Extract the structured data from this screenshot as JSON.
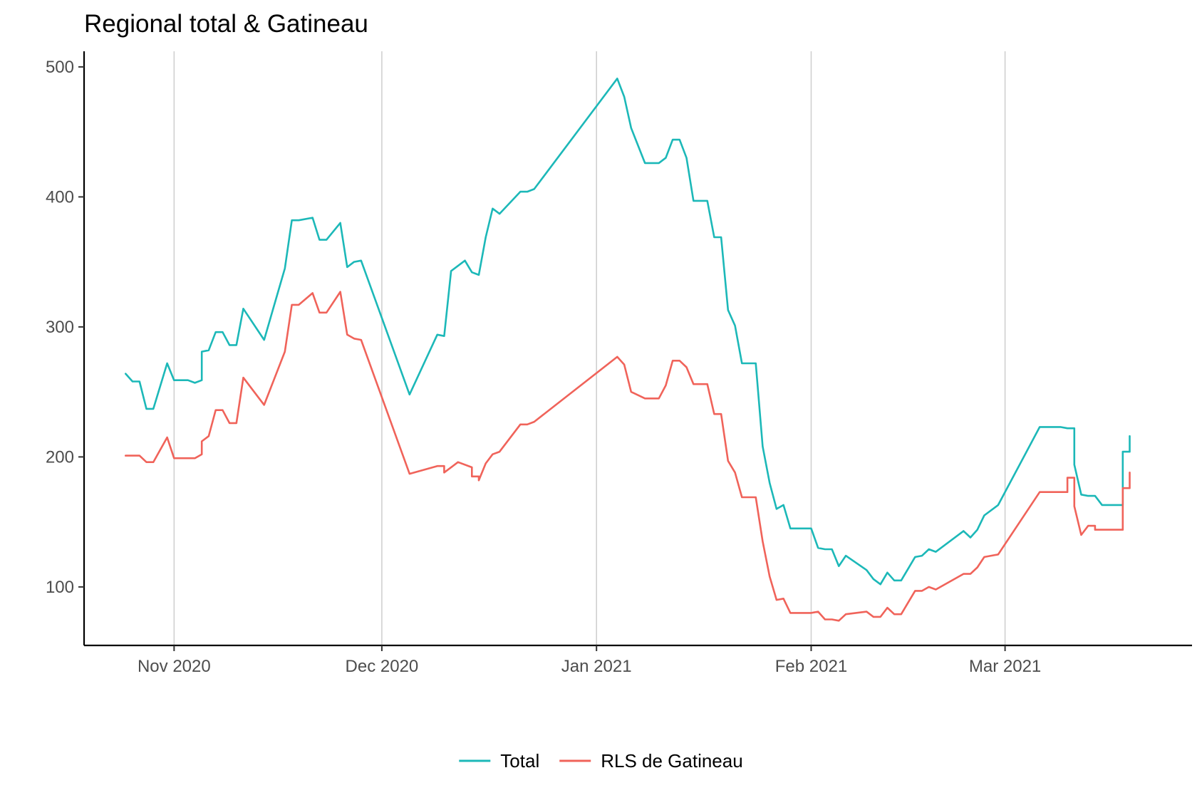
{
  "chart_data": {
    "type": "line",
    "title": "Regional total & Gatineau",
    "xlabel": "",
    "ylabel": "",
    "x_axis": {
      "type": "date",
      "range": [
        "2020-10-19",
        "2021-03-28"
      ],
      "ticks": [
        {
          "date": "2020-11-01",
          "label": "Nov 2020"
        },
        {
          "date": "2020-12-01",
          "label": "Dec 2020"
        },
        {
          "date": "2021-01-01",
          "label": "Jan 2021"
        },
        {
          "date": "2021-02-01",
          "label": "Feb 2021"
        },
        {
          "date": "2021-03-01",
          "label": "Mar 2021"
        }
      ],
      "grid": true
    },
    "y_axis": {
      "range": [
        55,
        512
      ],
      "ticks": [
        100,
        200,
        300,
        400,
        500
      ],
      "grid": false
    },
    "legend": {
      "position": "bottom"
    },
    "series": [
      {
        "name": "Total",
        "color": "#1cb8b8",
        "points": [
          [
            "2020-10-25",
            264
          ],
          [
            "2020-10-26",
            258
          ],
          [
            "2020-10-27",
            258
          ],
          [
            "2020-10-28",
            237
          ],
          [
            "2020-10-29",
            237
          ],
          [
            "2020-10-31",
            272
          ],
          [
            "2020-11-01",
            259
          ],
          [
            "2020-11-03",
            259
          ],
          [
            "2020-11-04",
            257
          ],
          [
            "2020-11-05",
            259
          ],
          [
            "2020-11-05",
            281
          ],
          [
            "2020-11-06",
            282
          ],
          [
            "2020-11-07",
            296
          ],
          [
            "2020-11-08",
            296
          ],
          [
            "2020-11-09",
            286
          ],
          [
            "2020-11-10",
            286
          ],
          [
            "2020-11-11",
            314
          ],
          [
            "2020-11-14",
            290
          ],
          [
            "2020-11-17",
            345
          ],
          [
            "2020-11-18",
            382
          ],
          [
            "2020-11-19",
            382
          ],
          [
            "2020-11-21",
            384
          ],
          [
            "2020-11-22",
            367
          ],
          [
            "2020-11-23",
            367
          ],
          [
            "2020-11-25",
            380
          ],
          [
            "2020-11-26",
            346
          ],
          [
            "2020-11-27",
            350
          ],
          [
            "2020-11-28",
            351
          ],
          [
            "2020-12-05",
            248
          ],
          [
            "2020-12-09",
            294
          ],
          [
            "2020-12-10",
            293
          ],
          [
            "2020-12-11",
            343
          ],
          [
            "2020-12-13",
            351
          ],
          [
            "2020-12-14",
            342
          ],
          [
            "2020-12-15",
            340
          ],
          [
            "2020-12-16",
            369
          ],
          [
            "2020-12-17",
            391
          ],
          [
            "2020-12-18",
            387
          ],
          [
            "2020-12-21",
            404
          ],
          [
            "2020-12-22",
            404
          ],
          [
            "2020-12-23",
            406
          ],
          [
            "2021-01-04",
            491
          ],
          [
            "2021-01-05",
            477
          ],
          [
            "2021-01-06",
            453
          ],
          [
            "2021-01-08",
            426
          ],
          [
            "2021-01-10",
            426
          ],
          [
            "2021-01-11",
            430
          ],
          [
            "2021-01-12",
            444
          ],
          [
            "2021-01-13",
            444
          ],
          [
            "2021-01-14",
            430
          ],
          [
            "2021-01-15",
            397
          ],
          [
            "2021-01-17",
            397
          ],
          [
            "2021-01-18",
            369
          ],
          [
            "2021-01-19",
            369
          ],
          [
            "2021-01-20",
            313
          ],
          [
            "2021-01-21",
            301
          ],
          [
            "2021-01-22",
            272
          ],
          [
            "2021-01-24",
            272
          ],
          [
            "2021-01-25",
            208
          ],
          [
            "2021-01-26",
            180
          ],
          [
            "2021-01-27",
            160
          ],
          [
            "2021-01-28",
            163
          ],
          [
            "2021-01-29",
            145
          ],
          [
            "2021-02-01",
            145
          ],
          [
            "2021-02-02",
            130
          ],
          [
            "2021-02-03",
            129
          ],
          [
            "2021-02-04",
            129
          ],
          [
            "2021-02-05",
            116
          ],
          [
            "2021-02-06",
            124
          ],
          [
            "2021-02-09",
            113
          ],
          [
            "2021-02-10",
            106
          ],
          [
            "2021-02-11",
            102
          ],
          [
            "2021-02-12",
            111
          ],
          [
            "2021-02-13",
            105
          ],
          [
            "2021-02-14",
            105
          ],
          [
            "2021-02-16",
            123
          ],
          [
            "2021-02-17",
            124
          ],
          [
            "2021-02-18",
            129
          ],
          [
            "2021-02-19",
            127
          ],
          [
            "2021-02-23",
            143
          ],
          [
            "2021-02-24",
            138
          ],
          [
            "2021-02-25",
            144
          ],
          [
            "2021-02-26",
            155
          ],
          [
            "2021-02-28",
            163
          ],
          [
            "2021-03-06",
            223
          ],
          [
            "2021-03-09",
            223
          ],
          [
            "2021-03-10",
            222
          ],
          [
            "2021-03-11",
            222
          ],
          [
            "2021-03-11",
            194
          ],
          [
            "2021-03-12",
            171
          ],
          [
            "2021-03-13",
            170
          ],
          [
            "2021-03-14",
            170
          ],
          [
            "2021-03-15",
            163
          ],
          [
            "2021-03-17",
            163
          ],
          [
            "2021-03-18",
            163
          ],
          [
            "2021-03-18",
            204
          ],
          [
            "2021-03-19",
            204
          ],
          [
            "2021-03-19",
            216
          ]
        ]
      },
      {
        "name": "RLS de Gatineau",
        "color": "#f0635a",
        "points": [
          [
            "2020-10-25",
            201
          ],
          [
            "2020-10-27",
            201
          ],
          [
            "2020-10-28",
            196
          ],
          [
            "2020-10-29",
            196
          ],
          [
            "2020-10-31",
            215
          ],
          [
            "2020-11-01",
            199
          ],
          [
            "2020-11-04",
            199
          ],
          [
            "2020-11-05",
            202
          ],
          [
            "2020-11-05",
            212
          ],
          [
            "2020-11-06",
            216
          ],
          [
            "2020-11-07",
            236
          ],
          [
            "2020-11-08",
            236
          ],
          [
            "2020-11-09",
            226
          ],
          [
            "2020-11-10",
            226
          ],
          [
            "2020-11-11",
            261
          ],
          [
            "2020-11-14",
            240
          ],
          [
            "2020-11-17",
            281
          ],
          [
            "2020-11-18",
            317
          ],
          [
            "2020-11-19",
            317
          ],
          [
            "2020-11-21",
            326
          ],
          [
            "2020-11-22",
            311
          ],
          [
            "2020-11-23",
            311
          ],
          [
            "2020-11-25",
            327
          ],
          [
            "2020-11-26",
            294
          ],
          [
            "2020-11-27",
            291
          ],
          [
            "2020-11-28",
            290
          ],
          [
            "2020-12-05",
            187
          ],
          [
            "2020-12-09",
            193
          ],
          [
            "2020-12-10",
            193
          ],
          [
            "2020-12-10",
            188
          ],
          [
            "2020-12-12",
            196
          ],
          [
            "2020-12-14",
            192
          ],
          [
            "2020-12-14",
            185
          ],
          [
            "2020-12-15",
            185
          ],
          [
            "2020-12-15",
            182
          ],
          [
            "2020-12-16",
            195
          ],
          [
            "2020-12-17",
            202
          ],
          [
            "2020-12-18",
            204
          ],
          [
            "2020-12-21",
            225
          ],
          [
            "2020-12-22",
            225
          ],
          [
            "2020-12-23",
            227
          ],
          [
            "2021-01-04",
            277
          ],
          [
            "2021-01-05",
            271
          ],
          [
            "2021-01-06",
            250
          ],
          [
            "2021-01-08",
            245
          ],
          [
            "2021-01-10",
            245
          ],
          [
            "2021-01-11",
            255
          ],
          [
            "2021-01-12",
            274
          ],
          [
            "2021-01-13",
            274
          ],
          [
            "2021-01-14",
            269
          ],
          [
            "2021-01-15",
            256
          ],
          [
            "2021-01-17",
            256
          ],
          [
            "2021-01-18",
            233
          ],
          [
            "2021-01-19",
            233
          ],
          [
            "2021-01-20",
            197
          ],
          [
            "2021-01-21",
            188
          ],
          [
            "2021-01-22",
            169
          ],
          [
            "2021-01-24",
            169
          ],
          [
            "2021-01-25",
            135
          ],
          [
            "2021-01-26",
            108
          ],
          [
            "2021-01-27",
            90
          ],
          [
            "2021-01-28",
            91
          ],
          [
            "2021-01-29",
            80
          ],
          [
            "2021-02-01",
            80
          ],
          [
            "2021-02-02",
            81
          ],
          [
            "2021-02-03",
            75
          ],
          [
            "2021-02-04",
            75
          ],
          [
            "2021-02-05",
            74
          ],
          [
            "2021-02-06",
            79
          ],
          [
            "2021-02-09",
            81
          ],
          [
            "2021-02-10",
            77
          ],
          [
            "2021-02-11",
            77
          ],
          [
            "2021-02-12",
            84
          ],
          [
            "2021-02-13",
            79
          ],
          [
            "2021-02-14",
            79
          ],
          [
            "2021-02-16",
            97
          ],
          [
            "2021-02-17",
            97
          ],
          [
            "2021-02-18",
            100
          ],
          [
            "2021-02-19",
            98
          ],
          [
            "2021-02-23",
            110
          ],
          [
            "2021-02-24",
            110
          ],
          [
            "2021-02-25",
            115
          ],
          [
            "2021-02-26",
            123
          ],
          [
            "2021-02-28",
            125
          ],
          [
            "2021-03-06",
            173
          ],
          [
            "2021-03-09",
            173
          ],
          [
            "2021-03-10",
            173
          ],
          [
            "2021-03-10",
            184
          ],
          [
            "2021-03-11",
            184
          ],
          [
            "2021-03-11",
            162
          ],
          [
            "2021-03-12",
            140
          ],
          [
            "2021-03-13",
            147
          ],
          [
            "2021-03-14",
            147
          ],
          [
            "2021-03-14",
            144
          ],
          [
            "2021-03-17",
            144
          ],
          [
            "2021-03-18",
            144
          ],
          [
            "2021-03-18",
            176
          ],
          [
            "2021-03-19",
            176
          ],
          [
            "2021-03-19",
            188
          ]
        ]
      }
    ]
  }
}
